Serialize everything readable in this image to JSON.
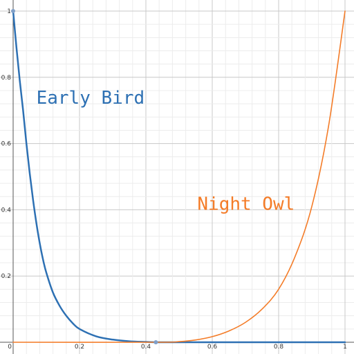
{
  "chart_data": {
    "type": "line",
    "title": "",
    "xlabel": "",
    "ylabel": "",
    "xlim": [
      0,
      1
    ],
    "ylim": [
      0,
      1
    ],
    "grid": true,
    "x_ticks": [
      {
        "value": 0,
        "label": "0"
      },
      {
        "value": 0.2,
        "label": "0.2"
      },
      {
        "value": 0.4,
        "label": "0.4"
      },
      {
        "value": 0.6,
        "label": "0.6"
      },
      {
        "value": 0.8,
        "label": "0.8"
      },
      {
        "value": 1,
        "label": "1"
      }
    ],
    "y_ticks": [
      {
        "value": 0.2,
        "label": "0.2"
      },
      {
        "value": 0.4,
        "label": "0.4"
      },
      {
        "value": 0.6,
        "label": "0.6"
      },
      {
        "value": 0.8,
        "label": "0.8"
      },
      {
        "value": 1,
        "label": "1"
      }
    ],
    "series": [
      {
        "name": "",
        "color": "#2d70b3",
        "x": [
          0,
          0.01,
          0.02,
          0.03,
          0.04,
          0.05,
          0.06,
          0.07,
          0.08,
          0.09,
          0.1,
          0.12,
          0.14,
          0.16,
          0.18,
          0.2,
          0.25,
          0.3,
          0.35,
          0.4,
          0.43,
          0.5,
          0.6,
          0.7,
          0.8,
          0.9,
          1.0
        ],
        "y": [
          1,
          0.89,
          0.79,
          0.7,
          0.6,
          0.51,
          0.43,
          0.36,
          0.3,
          0.25,
          0.21,
          0.15,
          0.11,
          0.08,
          0.057,
          0.04,
          0.018,
          0.008,
          0.003,
          0.001,
          0,
          0,
          0,
          0,
          0,
          0,
          0
        ]
      },
      {
        "name": "",
        "color": "#f47c28",
        "x": [
          0,
          0.43,
          0.5,
          0.55,
          0.6,
          0.65,
          0.7,
          0.75,
          0.8,
          0.85,
          0.9,
          0.95,
          1.0
        ],
        "y": [
          0,
          0,
          0.002,
          0.007,
          0.017,
          0.034,
          0.06,
          0.1,
          0.16,
          0.26,
          0.41,
          0.65,
          1.0
        ]
      }
    ],
    "annotations": [
      {
        "text": "Early Bird",
        "x": 0.07,
        "y": 0.72,
        "color": "#2d70b3"
      },
      {
        "text": "Night Owl",
        "x": 0.555,
        "y": 0.4,
        "color": "#f47c28"
      }
    ],
    "highlight_points": [
      {
        "x": 0,
        "y": 1,
        "color": "#7f9fc8"
      },
      {
        "x": 0.43,
        "y": 0,
        "color": "#7f9fc8"
      }
    ]
  }
}
